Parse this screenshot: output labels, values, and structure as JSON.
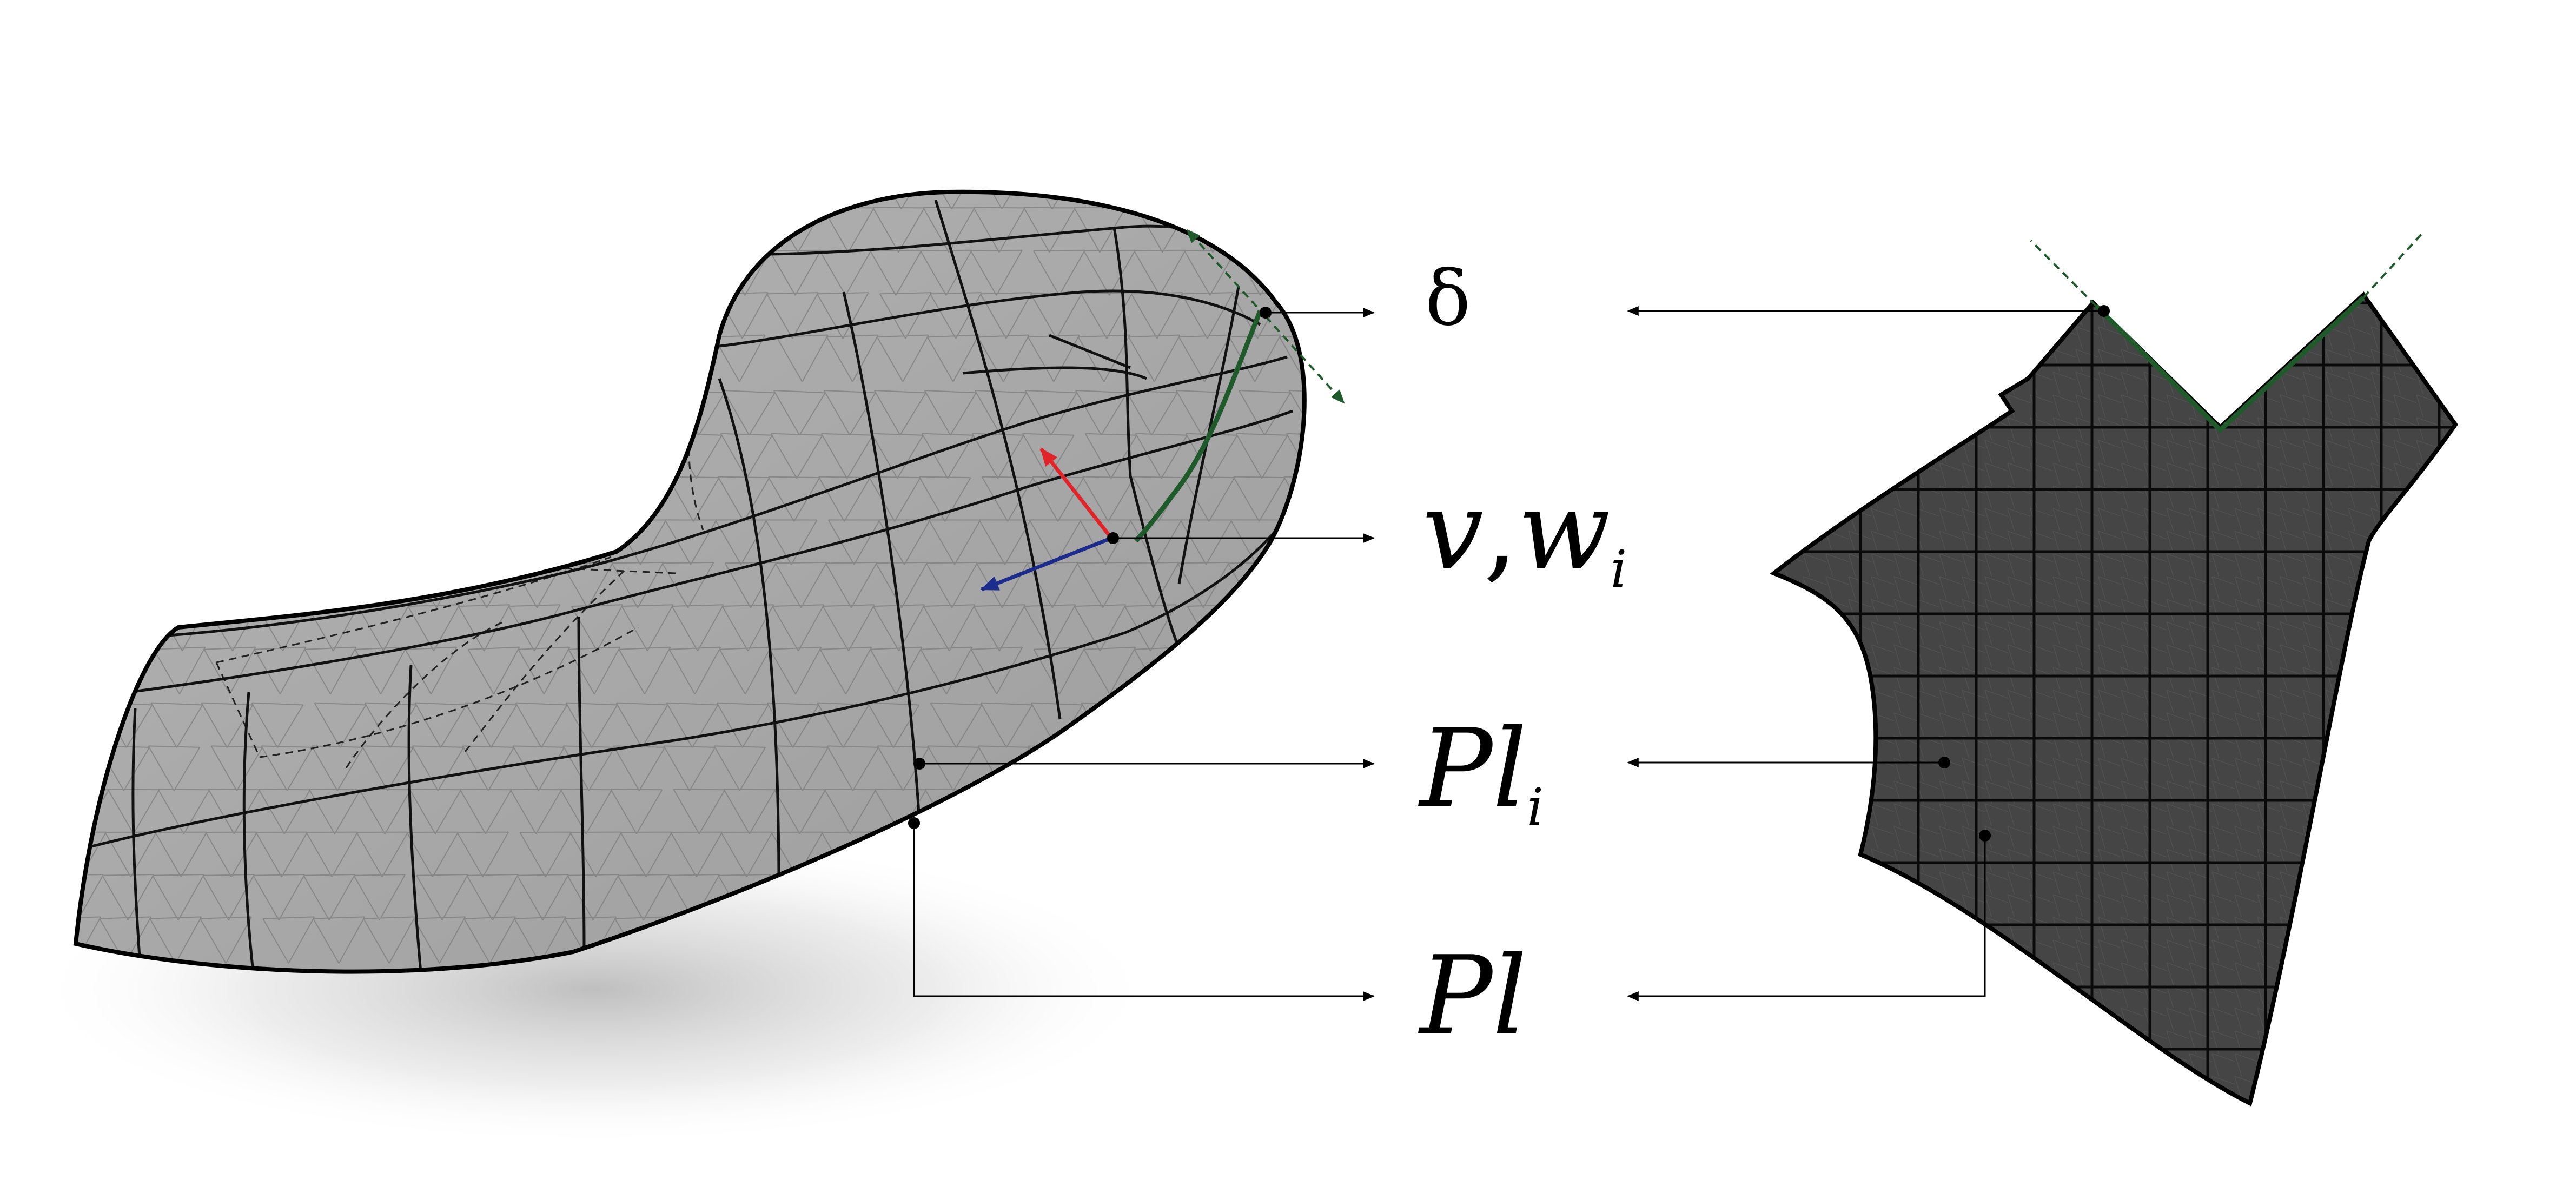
{
  "labels": {
    "delta": "δ",
    "v": "v",
    "comma": ",",
    "w": "w",
    "w_sub": "i",
    "pli_main": "Pl",
    "pli_sub": "i",
    "pl": "Pl"
  },
  "colors": {
    "surface_fill": "#a9a9a9",
    "surface_fine_mesh": "#7c7c7c",
    "surface_coarse_mesh": "#111111",
    "param_fill": "#454545",
    "param_fine_mesh": "#5a5a5a",
    "param_grid": "#0a0a0a",
    "boundary_curve": "#1e5a2a",
    "normal_arrow": "#e0242a",
    "tangent_arrow": "#1c2c8c",
    "leader_line": "#000000"
  }
}
